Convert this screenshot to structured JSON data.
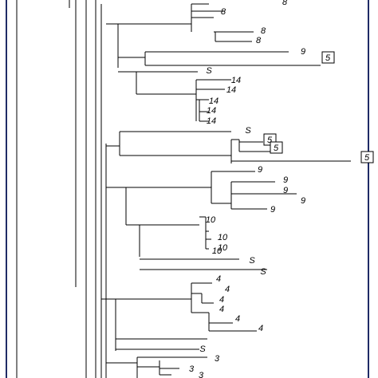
{
  "tree": {
    "tip_labels": [
      {
        "text": "8"
      },
      {
        "text": "8"
      },
      {
        "text": "8"
      },
      {
        "text": "8"
      },
      {
        "text": "9"
      },
      {
        "text": "5",
        "boxed": true
      },
      {
        "text": "S"
      },
      {
        "text": "14"
      },
      {
        "text": "14"
      },
      {
        "text": "14"
      },
      {
        "text": "14"
      },
      {
        "text": "14"
      },
      {
        "text": "S"
      },
      {
        "text": "5",
        "boxed": true
      },
      {
        "text": "5",
        "boxed": true
      },
      {
        "text": "5",
        "boxed": true
      },
      {
        "text": "9"
      },
      {
        "text": "9"
      },
      {
        "text": "9"
      },
      {
        "text": "9"
      },
      {
        "text": "9"
      },
      {
        "text": "10"
      },
      {
        "text": "10"
      },
      {
        "text": "10"
      },
      {
        "text": "10"
      },
      {
        "text": "S"
      },
      {
        "text": "S"
      },
      {
        "text": "4"
      },
      {
        "text": "4"
      },
      {
        "text": "4"
      },
      {
        "text": "4"
      },
      {
        "text": "4"
      },
      {
        "text": "4"
      },
      {
        "text": "S"
      },
      {
        "text": "3"
      },
      {
        "text": "3"
      },
      {
        "text": "3"
      }
    ]
  }
}
